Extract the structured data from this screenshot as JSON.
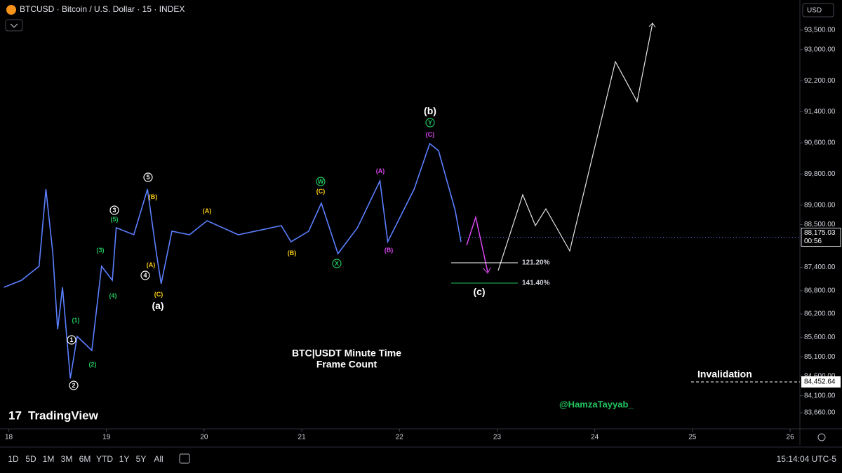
{
  "header": {
    "symbol": "BTCUSD · Bitcoin / U.S. Dollar · 15 · INDEX",
    "currency": "USD"
  },
  "chart_data": {
    "type": "line",
    "x": [
      17.95,
      18.13,
      18.31,
      18.38,
      18.45,
      18.5,
      18.55,
      18.63,
      18.7,
      18.85,
      18.95,
      19.06,
      19.1,
      19.28,
      19.42,
      19.51,
      19.56,
      19.67,
      19.85,
      20.03,
      20.35,
      20.79,
      20.89,
      21.07,
      21.2,
      21.37,
      21.57,
      21.8,
      21.88,
      22.15,
      22.31,
      22.4,
      22.51,
      22.57,
      22.63
    ],
    "series": [
      {
        "color": "#5b7fff",
        "values": [
          86886,
          87066,
          87427,
          89409,
          87787,
          85805,
          86886,
          84543,
          85625,
          85264,
          87427,
          87066,
          88418,
          88238,
          89409,
          87787,
          86976,
          88328,
          88238,
          88598,
          88238,
          88472,
          88058,
          88328,
          89049,
          87751,
          88418,
          89625,
          88058,
          89409,
          90581,
          90400,
          89409,
          88869,
          88058
        ]
      }
    ],
    "xlim": [
      17.91,
      26.1
    ],
    "ylim": [
      83246,
      94275
    ],
    "xticks": [
      18,
      19,
      20,
      21,
      22,
      23,
      24,
      25,
      26
    ],
    "yticks": [
      {
        "value": 93500,
        "label": "93,500.00"
      },
      {
        "value": 93000,
        "label": "93,000.00"
      },
      {
        "value": 92200,
        "label": "92,200.00"
      },
      {
        "value": 91400,
        "label": "91,400.00"
      },
      {
        "value": 90600,
        "label": "90,600.00"
      },
      {
        "value": 89800,
        "label": "89,800.00"
      },
      {
        "value": 89000,
        "label": "89,000.00"
      },
      {
        "value": 88500,
        "label": "88,500.00"
      },
      {
        "value": 87400,
        "label": "87,400.00"
      },
      {
        "value": 86800,
        "label": "86,800.00"
      },
      {
        "value": 86200,
        "label": "86,200.00"
      },
      {
        "value": 85600,
        "label": "85,600.00"
      },
      {
        "value": 85100,
        "label": "85,100.00"
      },
      {
        "value": 84600,
        "label": "84,600.00"
      },
      {
        "value": 84100,
        "label": "84,100.00"
      },
      {
        "value": 83660,
        "label": "83,660.00"
      }
    ],
    "current_price": {
      "value": 88175.03,
      "label": "88,175.03"
    },
    "countdown": "00:56",
    "invalidation": {
      "text": "Invalidation",
      "value": 84452.64,
      "label": "84,452.64"
    },
    "fib_levels": [
      {
        "label": "121.20%",
        "color": "#ffffff"
      },
      {
        "label": "141.40%",
        "color": "#22c55e"
      }
    ],
    "annotations": [
      {
        "text": "1",
        "style": "circle",
        "color": "#ffffff"
      },
      {
        "text": "(1)",
        "style": "plain",
        "color": "#22c55e"
      },
      {
        "text": "(2)",
        "style": "plain",
        "color": "#22c55e"
      },
      {
        "text": "2",
        "style": "circle",
        "color": "#ffffff"
      },
      {
        "text": "(3)",
        "style": "plain",
        "color": "#22c55e"
      },
      {
        "text": "(4)",
        "style": "plain",
        "color": "#22c55e"
      },
      {
        "text": "(5)",
        "style": "plain",
        "color": "#22c55e"
      },
      {
        "text": "3",
        "style": "circle",
        "color": "#ffffff"
      },
      {
        "text": "4",
        "style": "circle",
        "color": "#ffffff"
      },
      {
        "text": "(A)",
        "style": "plain",
        "color": "#facc15"
      },
      {
        "text": "(B)",
        "style": "plain",
        "color": "#facc15"
      },
      {
        "text": "5",
        "style": "circle",
        "color": "#ffffff"
      },
      {
        "text": "(C)",
        "style": "plain",
        "color": "#facc15"
      },
      {
        "text": "(a)",
        "style": "big",
        "color": "#ffffff"
      },
      {
        "text": "(A)",
        "style": "plain",
        "color": "#facc15"
      },
      {
        "text": "(B)",
        "style": "plain",
        "color": "#facc15"
      },
      {
        "text": "W",
        "style": "circle",
        "color": "#22c55e"
      },
      {
        "text": "(C)",
        "style": "plain",
        "color": "#facc15"
      },
      {
        "text": "X",
        "style": "circle",
        "color": "#22c55e"
      },
      {
        "text": "(A)",
        "style": "plain",
        "color": "#d946ef"
      },
      {
        "text": "(B)",
        "style": "plain",
        "color": "#d946ef"
      },
      {
        "text": "(C)",
        "style": "plain",
        "color": "#d946ef"
      },
      {
        "text": "Y",
        "style": "circle",
        "color": "#22c55e"
      },
      {
        "text": "(b)",
        "style": "big",
        "color": "#ffffff"
      },
      {
        "text": "(c)",
        "style": "big",
        "color": "#ffffff"
      }
    ],
    "caption": [
      "BTC|USDT Minute Time",
      "Frame Count"
    ],
    "signature": "@HamzaTayyab_",
    "watermark": "TradingView"
  },
  "toolbar": {
    "ranges": [
      "1D",
      "5D",
      "1M",
      "3M",
      "6M",
      "YTD",
      "1Y",
      "5Y",
      "All"
    ],
    "clock": "15:14:04 UTC-5"
  }
}
